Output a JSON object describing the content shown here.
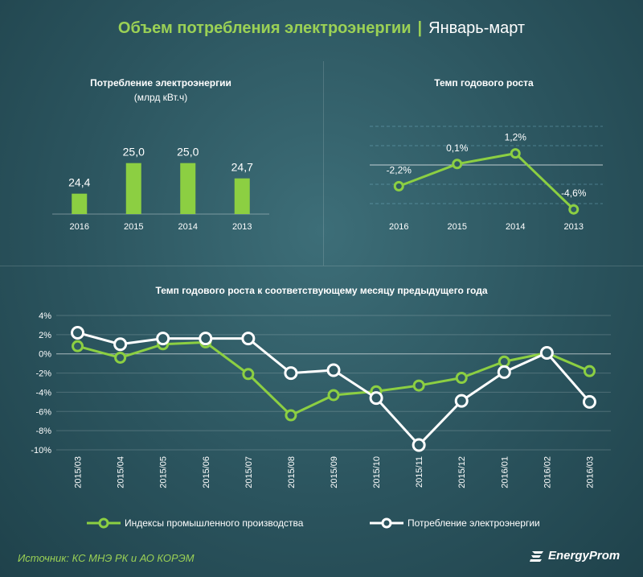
{
  "header": {
    "title": "Объем потребления электроэнергии",
    "separator": "|",
    "subtitle": "Январь-март"
  },
  "chart_data": [
    {
      "type": "bar",
      "title": "Потребление электроэнергии",
      "subtitle": "(млрд кВт.ч)",
      "categories": [
        "2016",
        "2015",
        "2014",
        "2013"
      ],
      "values": [
        24.4,
        25.0,
        25.0,
        24.7
      ],
      "value_labels": [
        "24,4",
        "25,0",
        "25,0",
        "24,7"
      ],
      "ylim": [
        24.0,
        25.2
      ],
      "color": "#8ccf42"
    },
    {
      "type": "line",
      "title": "Темп годового  роста",
      "categories": [
        "2016",
        "2015",
        "2014",
        "2013"
      ],
      "values": [
        -2.2,
        0.1,
        1.2,
        -4.6
      ],
      "value_labels": [
        "-2,2%",
        "0,1%",
        "1,2%",
        "-4,6%"
      ],
      "ylim": [
        -5,
        4
      ],
      "color": "#8ccf42"
    },
    {
      "type": "line",
      "title": "Темп годового  роста к соответствующему месяцу предыдущего года",
      "categories": [
        "2015/03",
        "2015/04",
        "2015/05",
        "2015/06",
        "2015/07",
        "2015/08",
        "2015/09",
        "2015/10",
        "2015/11",
        "2015/12",
        "2016/01",
        "2016/02",
        "2016/03"
      ],
      "ylim": [
        -10,
        4
      ],
      "ytick_values": [
        4,
        2,
        0,
        -2,
        -4,
        -6,
        -8,
        -10
      ],
      "ytick_labels": [
        "4%",
        "2%",
        "0%",
        "-2%",
        "-4%",
        "-6%",
        "-8%",
        "-10%"
      ],
      "series": [
        {
          "name": "Индексы промышленного производства",
          "color": "#8ccf42",
          "values": [
            0.8,
            -0.4,
            1.0,
            1.2,
            -2.1,
            -6.4,
            -4.3,
            -3.9,
            -3.3,
            -2.5,
            -0.8,
            0.1,
            -1.8
          ]
        },
        {
          "name": "Потребление электроэнергии",
          "color": "#ffffff",
          "values": [
            2.2,
            1.0,
            1.6,
            1.6,
            1.6,
            -2.0,
            -1.7,
            -4.6,
            -9.5,
            -4.9,
            -1.9,
            0.1,
            -5.0
          ]
        }
      ]
    }
  ],
  "footer": {
    "source": "Источник: КС МНЭ РК и АО КОРЭМ",
    "logo": "EnergyProm"
  }
}
